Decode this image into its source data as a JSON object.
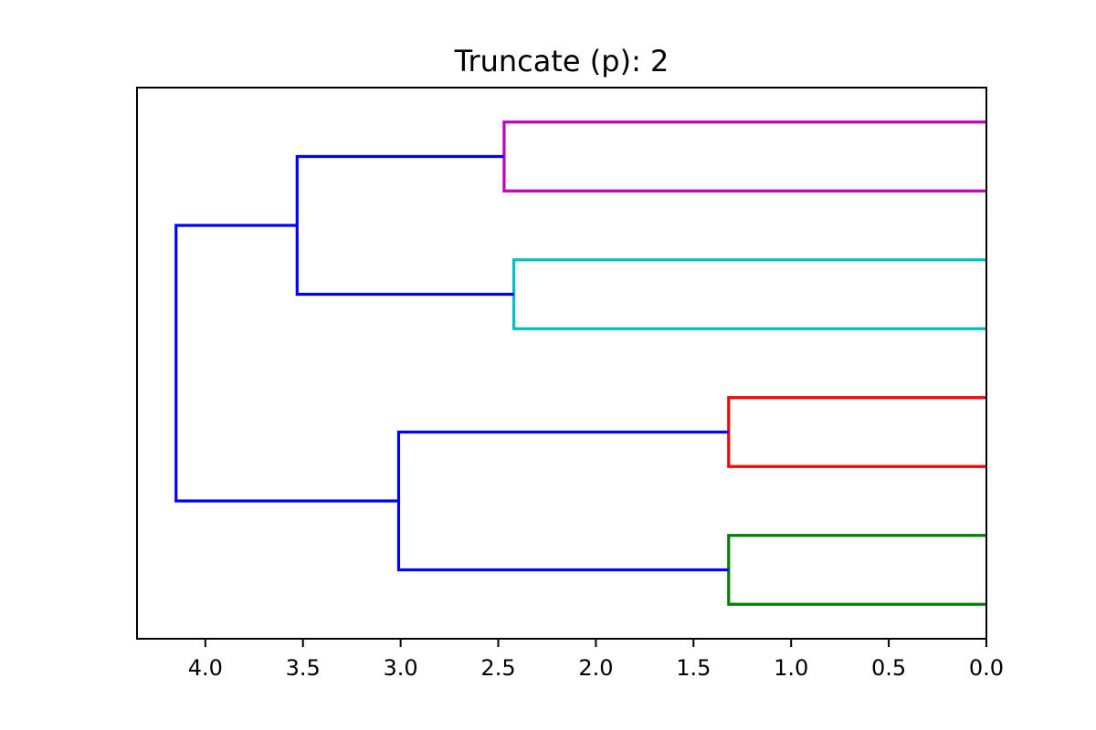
{
  "chart_data": {
    "type": "dendrogram",
    "title": "Truncate (p): 2",
    "orientation": "left",
    "xlabel": "",
    "ylabel": "",
    "xlim": [
      4.35,
      0.0
    ],
    "x_ticks": [
      4.0,
      3.5,
      3.0,
      2.5,
      2.0,
      1.5,
      1.0,
      0.5,
      0.0
    ],
    "x_tick_labels": [
      "4.0",
      "3.5",
      "3.0",
      "2.5",
      "2.0",
      "1.5",
      "1.0",
      "0.5",
      "0.0"
    ],
    "leaf_labels_shown": false,
    "leaf_count": 8,
    "links": [
      {
        "name": "magenta-cluster",
        "color": "#bf00bf",
        "height": 2.47,
        "left_leaf": 0,
        "right_leaf": 1
      },
      {
        "name": "cyan-cluster",
        "color": "#00bfbf",
        "height": 2.42,
        "left_leaf": 2,
        "right_leaf": 3
      },
      {
        "name": "red-cluster",
        "color": "#ff0000",
        "height": 1.32,
        "left_leaf": 4,
        "right_leaf": 5
      },
      {
        "name": "green-cluster",
        "color": "#008000",
        "height": 1.32,
        "left_leaf": 6,
        "right_leaf": 7
      },
      {
        "name": "upper-merge",
        "color": "#0000ff",
        "height": 3.53,
        "left": "magenta-cluster",
        "right": "cyan-cluster"
      },
      {
        "name": "lower-merge",
        "color": "#0000ff",
        "height": 3.01,
        "left": "red-cluster",
        "right": "green-cluster"
      },
      {
        "name": "root-merge",
        "color": "#0000ff",
        "height": 4.15,
        "left": "upper-merge",
        "right": "lower-merge"
      }
    ]
  }
}
